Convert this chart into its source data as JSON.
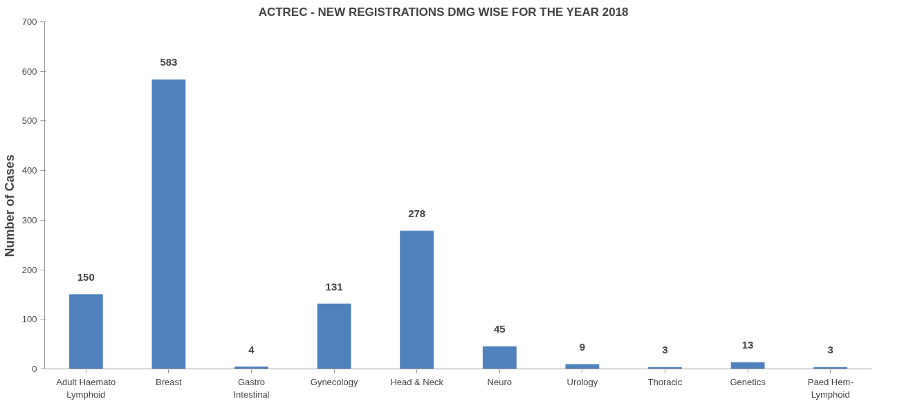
{
  "chart_data": {
    "type": "bar",
    "title": "ACTREC -   NEW  REGISTRATIONS  DMG  WISE  FOR  THE  YEAR  2018",
    "ylabel": "Number   of     Cases",
    "categories": [
      "Adult Haemato\nLymphoid",
      "Breast",
      "Gastro\nIntestinal",
      "Gynecology",
      "Head & Neck",
      "Neuro",
      "Urology",
      "Thoracic",
      "Genetics",
      "Paed Hem-\nLymphoid"
    ],
    "values": [
      150,
      583,
      4,
      131,
      278,
      45,
      9,
      3,
      13,
      3
    ],
    "color": "#4f81bd",
    "ylim": [
      0,
      700
    ],
    "yticks": [
      0,
      100,
      200,
      300,
      400,
      500,
      600,
      700
    ],
    "data_labels": true,
    "grid": false
  }
}
